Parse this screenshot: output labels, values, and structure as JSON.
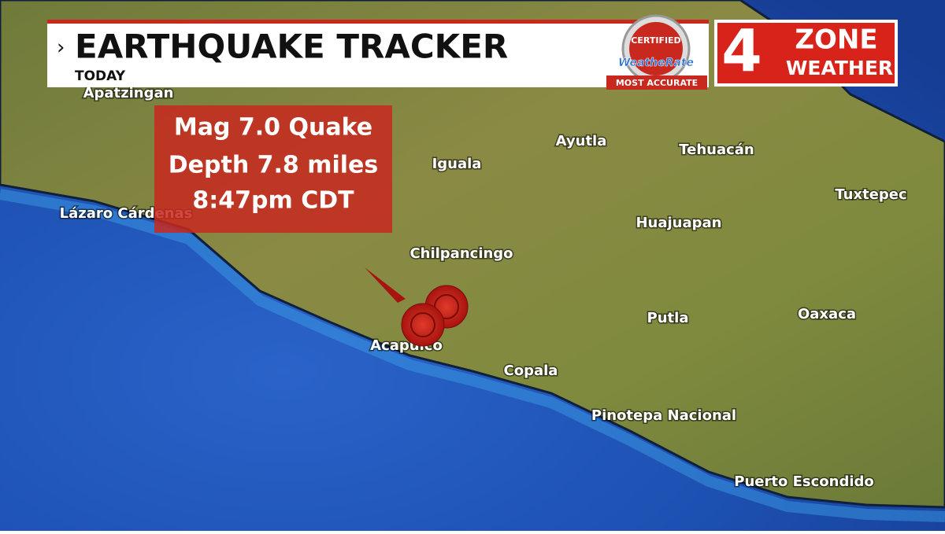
{
  "header": {
    "title": "EARTHQUAKE TRACKER",
    "subtitle": "TODAY"
  },
  "logos": {
    "certified": "CERTIFIED",
    "weatherate": "WeatheRate",
    "accurate": "MOST ACCURATE",
    "channel": "4",
    "zone": "ZONE",
    "weather": "WEATHER"
  },
  "quake_box": {
    "lines": [
      "Mag  7.0 Quake",
      "Depth 7.8 miles",
      "8:47pm CDT"
    ]
  },
  "cities": [
    "Apatzingan",
    "Lázaro Cárdenas",
    "Iguala",
    "Ayutla",
    "Tehuacán",
    "Tuxtepec",
    "Huajuapan",
    "Chilpancingo",
    "Putla",
    "Oaxaca",
    "Acapulco",
    "Copala",
    "Pinotepa Nacional",
    "Puerto Escondido"
  ]
}
